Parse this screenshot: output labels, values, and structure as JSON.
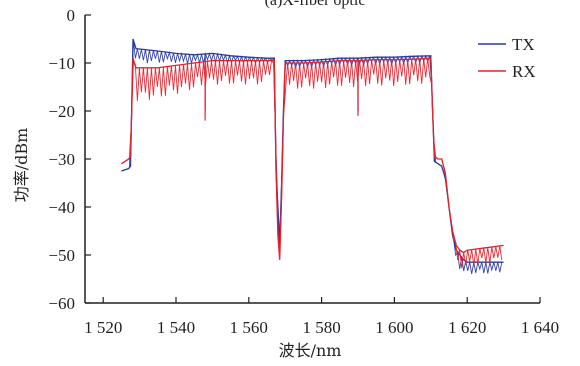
{
  "chart_data": {
    "type": "line",
    "title": "(a)X-fiber optic",
    "xlabel": "波长/nm",
    "ylabel": "功率/dBm",
    "xlim": [
      1515,
      1640
    ],
    "ylim": [
      -60,
      0
    ],
    "x_ticks": [
      1520,
      1540,
      1560,
      1580,
      1600,
      1620,
      1640
    ],
    "x_tick_labels": [
      "1 520",
      "1 540",
      "1 560",
      "1 580",
      "1 600",
      "1 620",
      "1 640"
    ],
    "y_ticks": [
      0,
      -10,
      -20,
      -30,
      -40,
      -50,
      -60
    ],
    "y_tick_labels": [
      "0",
      "−10",
      "−20",
      "−30",
      "−40",
      "−50",
      "−60"
    ],
    "grid": false,
    "legend_position": "top-right",
    "series": [
      {
        "name": "TX",
        "color": "#2b3aa0",
        "x": [
          1525,
          1527,
          1527.5,
          1527.8,
          1528.2,
          1529,
          1535,
          1540,
          1545,
          1550,
          1555,
          1560,
          1565,
          1567,
          1567.5,
          1568,
          1568.5,
          1569,
          1569.5,
          1570,
          1575,
          1580,
          1585,
          1590,
          1595,
          1600,
          1605,
          1610,
          1610.5,
          1611,
          1612,
          1613,
          1614,
          1615,
          1616,
          1617,
          1618,
          1619,
          1620,
          1625,
          1630
        ],
        "y": [
          -32.5,
          -32,
          -31.5,
          -20,
          -5,
          -7,
          -7.5,
          -8,
          -8.3,
          -8,
          -8.5,
          -8.8,
          -9,
          -9,
          -33,
          -40,
          -48,
          -35,
          -20,
          -9.5,
          -9.5,
          -9.3,
          -9,
          -9,
          -8.8,
          -8.8,
          -8.6,
          -8.5,
          -20,
          -30.5,
          -31,
          -31.5,
          -34,
          -40,
          -46,
          -49,
          -50,
          -51,
          -51.5,
          -51.5,
          -51.5
        ],
        "env_amp": [
          0,
          0,
          0,
          0,
          0,
          3,
          2.5,
          2,
          2,
          1.8,
          1.5,
          1.2,
          1,
          0,
          0,
          0,
          0,
          0,
          0,
          1.5,
          1.5,
          1.5,
          1.5,
          1.5,
          1.5,
          1.5,
          1.5,
          1.5,
          0,
          0,
          0,
          0,
          0,
          0,
          0,
          2,
          3,
          3,
          2.5,
          2.5,
          2
        ],
        "spikes": [
          {
            "x": 1548,
            "y": -20
          },
          {
            "x": 1590,
            "y": -20
          }
        ]
      },
      {
        "name": "RX",
        "color": "#e8202a",
        "x": [
          1525,
          1527,
          1527.5,
          1527.8,
          1528.2,
          1529,
          1535,
          1540,
          1545,
          1550,
          1555,
          1560,
          1565,
          1567,
          1567.5,
          1568,
          1568.5,
          1569,
          1569.5,
          1570,
          1575,
          1580,
          1585,
          1590,
          1595,
          1600,
          1605,
          1610,
          1610.5,
          1611,
          1612,
          1613,
          1614,
          1615,
          1616,
          1617,
          1618,
          1619,
          1620,
          1625,
          1630
        ],
        "y": [
          -31,
          -30,
          -29.5,
          -21,
          -9,
          -11,
          -11,
          -10.5,
          -10,
          -9.5,
          -9.5,
          -9.5,
          -9.5,
          -9.5,
          -33,
          -46,
          -51,
          -38,
          -22,
          -10,
          -10,
          -9.8,
          -9.5,
          -9.5,
          -9.3,
          -9.3,
          -9.2,
          -9,
          -20,
          -29.5,
          -30,
          -30,
          -33,
          -40,
          -45,
          -48,
          -49,
          -49.5,
          -49,
          -48.5,
          -48
        ],
        "env_amp": [
          0,
          0,
          0,
          0,
          0,
          7,
          6.5,
          6,
          5.5,
          5,
          5,
          5,
          5,
          0,
          0,
          0,
          0,
          0,
          0,
          5.5,
          5.5,
          5.5,
          5.5,
          5.5,
          5.5,
          5.5,
          5.5,
          5,
          0,
          0,
          0,
          0,
          0,
          0,
          1,
          3,
          3.5,
          3.5,
          3.5,
          3.5,
          3
        ],
        "spikes": [
          {
            "x": 1548,
            "y": -22
          },
          {
            "x": 1590,
            "y": -21
          }
        ]
      }
    ]
  }
}
